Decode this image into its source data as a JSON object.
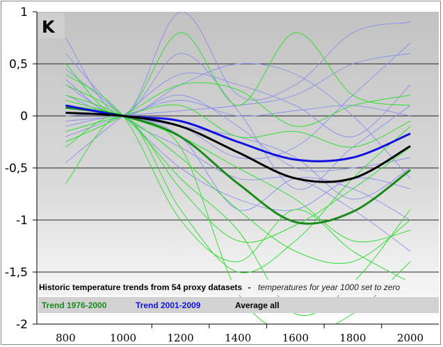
{
  "chart_data": {
    "type": "line",
    "title": "Historic temperature trends from 54 proxy datasets",
    "subtitle": "temperatures for year 1000 set to zero",
    "title_separator": "-",
    "ylabel": "K",
    "xlim": [
      800,
      2000
    ],
    "ylim": [
      -2,
      1
    ],
    "x_ticks": [
      "800",
      "1000",
      "1200",
      "1400",
      "1600",
      "1800",
      "2000"
    ],
    "y_ticks": [
      "1",
      "0,5",
      "0",
      "-0,5",
      "-1",
      "-1,5",
      "-2"
    ],
    "y_tick_values": [
      1,
      0.5,
      0,
      -0.5,
      -1,
      -1.5,
      -2
    ],
    "grid": "horizontal",
    "legend_placement": "bottom",
    "x": [
      800,
      1000,
      1200,
      1400,
      1600,
      1800,
      2000
    ],
    "series": [
      {
        "name": "Trend 1976-2000",
        "color": "#1a8a1a",
        "values": [
          0.08,
          0,
          -0.2,
          -0.65,
          -1.02,
          -0.92,
          -0.52
        ]
      },
      {
        "name": "Trend 2001-2009",
        "color": "#1010e0",
        "values": [
          0.1,
          0,
          -0.05,
          -0.25,
          -0.42,
          -0.4,
          -0.17
        ]
      },
      {
        "name": "Average all",
        "color": "#000000",
        "values": [
          0.03,
          0,
          -0.1,
          -0.35,
          -0.6,
          -0.6,
          -0.29
        ]
      }
    ],
    "proxy_series_green": [
      [
        0.5,
        0,
        0.8,
        0.1,
        0.8,
        0.2,
        0.1
      ],
      [
        -0.65,
        0,
        -0.9,
        -1.5,
        -1.2,
        -0.6,
        -0.1
      ],
      [
        0.3,
        0,
        -0.6,
        -1.1,
        -1.9,
        -1.6,
        -0.9
      ],
      [
        0.2,
        0,
        -0.4,
        -0.9,
        -1.3,
        -1.4,
        -1.0
      ],
      [
        -0.25,
        0,
        0.3,
        0.25,
        -0.1,
        0.1,
        0.2
      ],
      [
        0.4,
        0,
        -1.0,
        -1.4,
        -0.9,
        -1.3,
        -1.6
      ],
      [
        0.1,
        0,
        -0.3,
        -1.7,
        -2.1,
        -1.9,
        -1.4
      ],
      [
        -0.15,
        0,
        0.1,
        -0.2,
        -0.15,
        -0.3,
        -0.05
      ],
      [
        0.15,
        0,
        -0.2,
        -0.5,
        -0.8,
        -1.2,
        -1.1
      ],
      [
        -0.3,
        0,
        -0.7,
        -1.2,
        -1.05,
        -0.7,
        -0.3
      ]
    ],
    "proxy_series_blue": [
      [
        0.75,
        0,
        1.0,
        0.2,
        0.3,
        0.8,
        0.9
      ],
      [
        -0.45,
        0,
        0.4,
        0.3,
        0.1,
        -0.2,
        0.3
      ],
      [
        0.6,
        0,
        -0.3,
        -0.6,
        -0.6,
        -0.9,
        -1.3
      ],
      [
        0.35,
        0,
        0.6,
        0.05,
        -0.7,
        -0.3,
        0.1
      ],
      [
        -0.1,
        0,
        -0.1,
        -0.4,
        -0.3,
        0.2,
        0.7
      ],
      [
        0.2,
        0,
        0.2,
        -0.1,
        -0.5,
        -0.5,
        -0.4
      ],
      [
        0.45,
        0,
        -0.5,
        -0.8,
        -0.9,
        -0.6,
        -0.7
      ],
      [
        -0.05,
        0,
        0.05,
        0.1,
        0.2,
        0.5,
        0.6
      ],
      [
        0.0,
        0,
        -0.2,
        -0.9,
        -0.6,
        -0.7,
        -1.0
      ],
      [
        0.3,
        0,
        0.3,
        0.5,
        0.4,
        0.0,
        -0.6
      ],
      [
        0.1,
        0,
        -0.1,
        -0.2,
        -0.4,
        -0.8,
        -0.5
      ],
      [
        -0.2,
        0,
        0.15,
        0.0,
        0.05,
        0.1,
        0.0
      ]
    ],
    "proxy_colors": {
      "green": "#33dd33",
      "blue": "#8c8cee"
    }
  }
}
